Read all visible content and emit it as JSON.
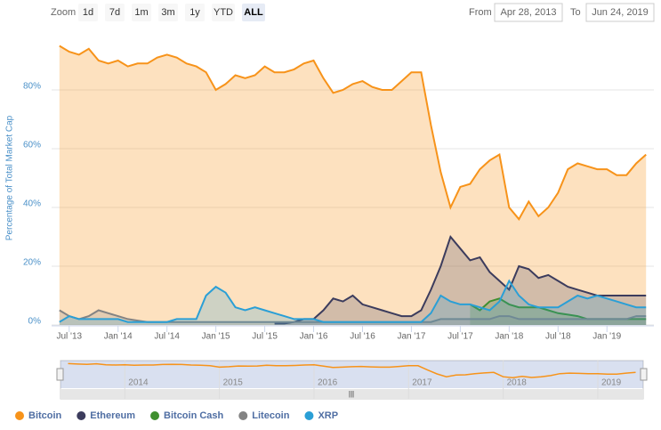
{
  "range_selector": {
    "zoom_label": "Zoom",
    "buttons": [
      "1d",
      "7d",
      "1m",
      "3m",
      "1y",
      "YTD",
      "ALL"
    ],
    "selected": 6,
    "from_label": "From",
    "from": "Apr 28, 2013",
    "to_label": "To",
    "to": "Jun 24, 2019"
  },
  "chart_data": {
    "type": "area",
    "y_axis_label": "Percentage of Total Market Cap",
    "xlim": [
      2013.32,
      2019.48
    ],
    "xticks": [
      {
        "value": 2013.5,
        "label": "Jul '13"
      },
      {
        "value": 2014.0,
        "label": "Jan '14"
      },
      {
        "value": 2014.5,
        "label": "Jul '14"
      },
      {
        "value": 2015.0,
        "label": "Jan '15"
      },
      {
        "value": 2015.5,
        "label": "Jul '15"
      },
      {
        "value": 2016.0,
        "label": "Jan '16"
      },
      {
        "value": 2016.5,
        "label": "Jul '16"
      },
      {
        "value": 2017.0,
        "label": "Jan '17"
      },
      {
        "value": 2017.5,
        "label": "Jul '17"
      },
      {
        "value": 2018.0,
        "label": "Jan '18"
      },
      {
        "value": 2018.5,
        "label": "Jul '18"
      },
      {
        "value": 2019.0,
        "label": "Jan '19"
      }
    ],
    "ylim": [
      0,
      100
    ],
    "yticks": [
      {
        "value": 0,
        "label": "0%"
      },
      {
        "value": 20,
        "label": "20%"
      },
      {
        "value": 40,
        "label": "40%"
      },
      {
        "value": 60,
        "label": "60%"
      },
      {
        "value": 80,
        "label": "80%"
      }
    ],
    "grid": true,
    "legend": "bottom-left",
    "x": [
      2013.4,
      2013.5,
      2013.6,
      2013.7,
      2013.8,
      2013.9,
      2014.0,
      2014.1,
      2014.2,
      2014.3,
      2014.4,
      2014.5,
      2014.6,
      2014.7,
      2014.8,
      2014.9,
      2015.0,
      2015.1,
      2015.2,
      2015.3,
      2015.4,
      2015.5,
      2015.6,
      2015.7,
      2015.8,
      2015.9,
      2016.0,
      2016.1,
      2016.2,
      2016.3,
      2016.4,
      2016.5,
      2016.6,
      2016.7,
      2016.8,
      2016.9,
      2017.0,
      2017.1,
      2017.2,
      2017.3,
      2017.4,
      2017.5,
      2017.6,
      2017.7,
      2017.8,
      2017.9,
      2018.0,
      2018.1,
      2018.2,
      2018.3,
      2018.4,
      2018.5,
      2018.6,
      2018.7,
      2018.8,
      2018.9,
      2019.0,
      2019.1,
      2019.2,
      2019.3,
      2019.4
    ],
    "series": [
      {
        "name": "Bitcoin",
        "color": "#f7931a",
        "values": [
          95,
          93,
          92,
          94,
          90,
          89,
          90,
          88,
          89,
          89,
          91,
          92,
          91,
          89,
          88,
          86,
          80,
          82,
          85,
          84,
          85,
          88,
          86,
          86,
          87,
          89,
          90,
          84,
          79,
          80,
          82,
          83,
          81,
          80,
          80,
          83,
          86,
          86,
          68,
          52,
          40,
          47,
          48,
          53,
          56,
          58,
          40,
          36,
          42,
          37,
          40,
          45,
          53,
          55,
          54,
          53,
          53,
          51,
          51,
          55,
          58
        ]
      },
      {
        "name": "Ethereum",
        "color": "#3c3c5d",
        "values": [
          null,
          null,
          null,
          null,
          null,
          null,
          null,
          null,
          null,
          null,
          null,
          null,
          null,
          null,
          null,
          null,
          null,
          null,
          null,
          null,
          null,
          null,
          0.5,
          0.5,
          1,
          2,
          2,
          5,
          9,
          8,
          10,
          7,
          6,
          5,
          4,
          3,
          3,
          5,
          12,
          20,
          30,
          26,
          22,
          23,
          18,
          15,
          12,
          20,
          19,
          16,
          17,
          15,
          13,
          12,
          11,
          10,
          10,
          10,
          10,
          10,
          10
        ]
      },
      {
        "name": "Bitcoin Cash",
        "color": "#3f8f2f",
        "values": [
          null,
          null,
          null,
          null,
          null,
          null,
          null,
          null,
          null,
          null,
          null,
          null,
          null,
          null,
          null,
          null,
          null,
          null,
          null,
          null,
          null,
          null,
          null,
          null,
          null,
          null,
          null,
          null,
          null,
          null,
          null,
          null,
          null,
          null,
          null,
          null,
          null,
          null,
          null,
          null,
          null,
          null,
          7,
          5,
          8,
          9,
          7,
          6,
          6,
          6,
          5,
          4,
          3.5,
          3,
          2,
          2,
          2,
          2,
          2,
          2,
          2
        ]
      },
      {
        "name": "Litecoin",
        "color": "#838383",
        "values": [
          5,
          3,
          2,
          3,
          5,
          4,
          3,
          2,
          1.5,
          1,
          1,
          1,
          1,
          1,
          1,
          1,
          1,
          1,
          1,
          1,
          1,
          1,
          1,
          1,
          1,
          1,
          1,
          1,
          1,
          1,
          1,
          1,
          1,
          1,
          1,
          1,
          1,
          1,
          1,
          2,
          2,
          2,
          2,
          2,
          2,
          3,
          3,
          2,
          2,
          2,
          2,
          2,
          2,
          2,
          2,
          2,
          2,
          2,
          2,
          3,
          3
        ]
      },
      {
        "name": "XRP",
        "color": "#2a9fd6",
        "values": [
          1,
          3,
          2,
          2,
          2,
          2,
          2,
          1,
          1,
          1,
          1,
          1,
          2,
          2,
          2,
          10,
          13,
          11,
          6,
          5,
          6,
          5,
          4,
          3,
          2,
          2,
          2,
          1,
          1,
          1,
          1,
          1,
          1,
          1,
          1,
          1,
          1,
          1,
          4,
          10,
          8,
          7,
          7,
          6,
          5,
          8,
          15,
          10,
          7,
          6,
          6,
          6,
          8,
          10,
          9,
          10,
          9,
          8,
          7,
          6,
          6
        ]
      }
    ],
    "navigator_ticks": [
      2014,
      2015,
      2016,
      2017,
      2018,
      2019
    ]
  }
}
